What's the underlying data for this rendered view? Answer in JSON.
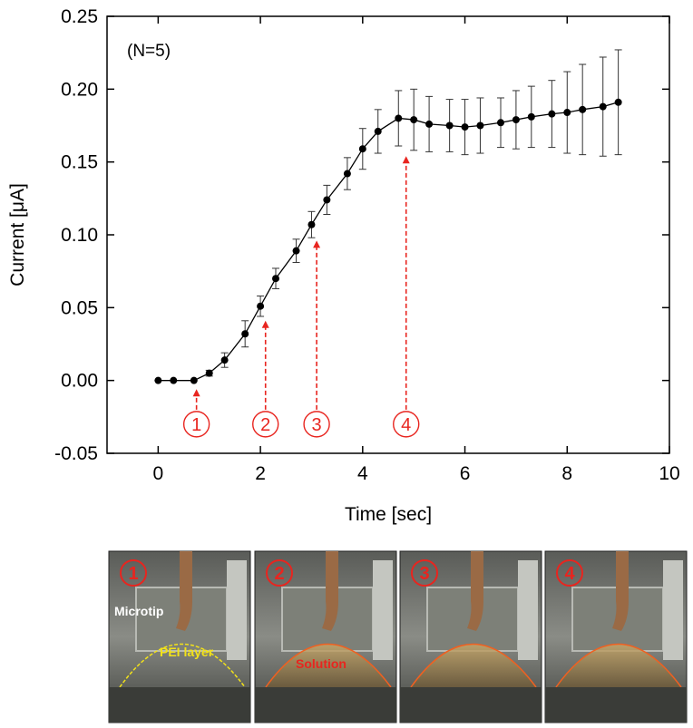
{
  "chart_data": {
    "type": "line",
    "xlabel": "Time [sec]",
    "ylabel": "Current [μA]",
    "annotation": "(N=5)",
    "x": [
      0,
      0.3,
      0.7,
      1.0,
      1.3,
      1.7,
      2.0,
      2.3,
      2.7,
      3.0,
      3.3,
      3.7,
      4.0,
      4.3,
      4.7,
      5.0,
      5.3,
      5.7,
      6.0,
      6.3,
      6.7,
      7.0,
      7.3,
      7.7,
      8.0,
      8.3,
      8.7,
      9.0
    ],
    "series": [
      {
        "color": "#000000",
        "values": [
          0.0,
          0.0,
          0.0,
          0.005,
          0.014,
          0.032,
          0.051,
          0.07,
          0.089,
          0.107,
          0.124,
          0.142,
          0.159,
          0.171,
          0.18,
          0.179,
          0.176,
          0.175,
          0.174,
          0.175,
          0.177,
          0.179,
          0.181,
          0.183,
          0.184,
          0.186,
          0.188,
          0.191
        ],
        "errors": [
          0,
          0,
          0,
          0.002,
          0.005,
          0.009,
          0.007,
          0.007,
          0.008,
          0.009,
          0.01,
          0.011,
          0.014,
          0.015,
          0.019,
          0.021,
          0.019,
          0.018,
          0.019,
          0.019,
          0.017,
          0.02,
          0.021,
          0.023,
          0.028,
          0.031,
          0.034,
          0.036
        ]
      }
    ],
    "arrows": [
      {
        "label": "1",
        "x": 0.75,
        "y": -0.006
      },
      {
        "label": "2",
        "x": 2.1,
        "y": 0.041
      },
      {
        "label": "3",
        "x": 3.1,
        "y": 0.096
      },
      {
        "label": "4",
        "x": 4.85,
        "y": 0.154
      }
    ],
    "arrow_base": -0.03,
    "arrow_color": "#e8251f",
    "xlim": [
      -1,
      10
    ],
    "xticks": [
      0,
      2,
      4,
      6,
      8,
      10
    ],
    "ylim": [
      -0.05,
      0.25
    ],
    "yticks": [
      -0.05,
      {
        "value": 0,
        "label": "0.00"
      },
      0.05,
      {
        "value": 0.1,
        "label": "0.10"
      },
      0.15,
      {
        "value": 0.2,
        "label": "0.20"
      },
      0.25
    ]
  },
  "photos": [
    {
      "number": "1",
      "labels": [
        "Microtip",
        "PEI layer"
      ]
    },
    {
      "number": "2",
      "labels": [
        "Solution"
      ]
    },
    {
      "number": "3",
      "labels": []
    },
    {
      "number": "4",
      "labels": []
    }
  ]
}
